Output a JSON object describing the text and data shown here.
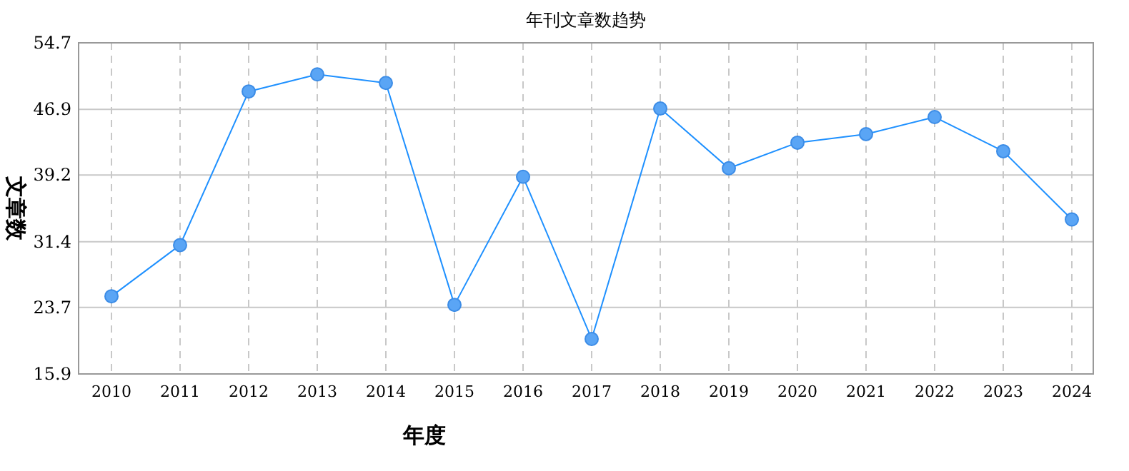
{
  "chart_data": {
    "type": "line",
    "title": "年刊文章数趋势",
    "xlabel": "年度",
    "ylabel": "文章数",
    "categories": [
      "2010",
      "2011",
      "2012",
      "2013",
      "2014",
      "2015",
      "2016",
      "2017",
      "2018",
      "2019",
      "2020",
      "2021",
      "2022",
      "2023",
      "2024"
    ],
    "series": [
      {
        "color": "#1e90ff",
        "values": [
          25,
          31,
          49,
          51,
          50,
          24,
          39,
          20,
          47,
          40,
          43,
          44,
          46,
          42,
          34
        ]
      }
    ],
    "ylim": [
      15.9,
      54.7
    ],
    "yticks": [
      15.9,
      23.7,
      31.4,
      39.2,
      46.9,
      54.7
    ],
    "grid": true,
    "marker": "circle",
    "line_style": "solid"
  }
}
